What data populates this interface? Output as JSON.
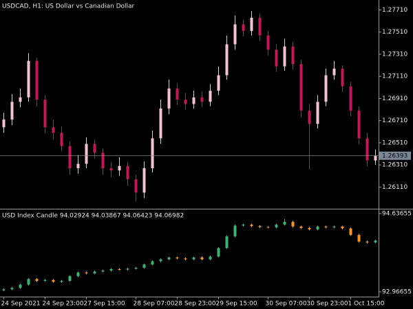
{
  "chart_data": [
    {
      "type": "candlestick",
      "title": "USDCAD, H1:  US Dollar vs Canadian Dollar",
      "open": [
        1.2665,
        1.2672,
        1.2688,
        1.2692,
        1.2725,
        1.269,
        1.2665,
        1.266,
        1.2648,
        1.2628,
        1.2632,
        1.265,
        1.2642,
        1.2628,
        1.2626,
        1.263,
        1.2618,
        1.2606,
        1.2628,
        1.2655,
        1.2682,
        1.27,
        1.269,
        1.2686,
        1.2692,
        1.2688,
        1.2698,
        1.2712,
        1.274,
        1.2758,
        1.2752,
        1.2764,
        1.2748,
        1.2735,
        1.272,
        1.2738,
        1.2722,
        1.268,
        1.2668,
        1.2688,
        1.2712,
        1.2718,
        1.2702,
        1.268,
        1.2655,
        1.2635
      ],
      "high": [
        1.2678,
        1.2695,
        1.27,
        1.2732,
        1.2728,
        1.2694,
        1.2672,
        1.2666,
        1.2652,
        1.264,
        1.2656,
        1.2654,
        1.2646,
        1.2634,
        1.2638,
        1.2634,
        1.2622,
        1.2634,
        1.2662,
        1.269,
        1.2708,
        1.2705,
        1.2696,
        1.2698,
        1.2697,
        1.2704,
        1.272,
        1.2748,
        1.2766,
        1.2762,
        1.277,
        1.2768,
        1.2752,
        1.274,
        1.2745,
        1.2742,
        1.2726,
        1.2686,
        1.2694,
        1.2718,
        1.2725,
        1.2721,
        1.2706,
        1.2684,
        1.266,
        1.2645
      ],
      "low": [
        1.266,
        1.2667,
        1.2683,
        1.2688,
        1.2684,
        1.266,
        1.2654,
        1.2643,
        1.2622,
        1.2623,
        1.2628,
        1.2637,
        1.2622,
        1.262,
        1.2621,
        1.2612,
        1.2598,
        1.2601,
        1.2624,
        1.265,
        1.2677,
        1.2685,
        1.2681,
        1.2682,
        1.2683,
        1.2684,
        1.2694,
        1.2708,
        1.2735,
        1.2747,
        1.2748,
        1.2743,
        1.273,
        1.2715,
        1.2716,
        1.2717,
        1.2674,
        1.2627,
        1.2664,
        1.2684,
        1.2708,
        1.2697,
        1.2675,
        1.265,
        1.263,
        1.2631
      ],
      "close": [
        1.2672,
        1.2688,
        1.2692,
        1.2725,
        1.269,
        1.2665,
        1.266,
        1.2648,
        1.2628,
        1.2632,
        1.265,
        1.2642,
        1.2628,
        1.2626,
        1.263,
        1.2618,
        1.2606,
        1.2628,
        1.2655,
        1.2682,
        1.27,
        1.269,
        1.2686,
        1.2692,
        1.2688,
        1.2698,
        1.2712,
        1.274,
        1.2758,
        1.2752,
        1.2764,
        1.2748,
        1.2735,
        1.272,
        1.2738,
        1.2722,
        1.268,
        1.2668,
        1.2688,
        1.2712,
        1.2718,
        1.2702,
        1.268,
        1.2655,
        1.2635,
        1.26393
      ],
      "up_color": "#f2c4d2",
      "down_color": "#c2185b",
      "current_price": 1.26393,
      "ylim": [
        1.2592,
        1.278
      ],
      "yticks": [
        {
          "value": 1.2611,
          "label": "1.26110"
        },
        {
          "value": 1.2631,
          "label": "1.26310"
        },
        {
          "value": 1.2651,
          "label": "1.26510"
        },
        {
          "value": 1.2671,
          "label": "1.26710"
        },
        {
          "value": 1.2691,
          "label": "1.26910"
        },
        {
          "value": 1.2711,
          "label": "1.27110"
        },
        {
          "value": 1.2731,
          "label": "1.27310"
        },
        {
          "value": 1.2751,
          "label": "1.27510"
        },
        {
          "value": 1.2771,
          "label": "1.27710"
        }
      ]
    },
    {
      "type": "candlestick",
      "title": "USD Index Candle 94.02924 94.03867 94.06423 94.06982",
      "categories": [
        "24 Sep 2021",
        null,
        null,
        null,
        null,
        "24 Sep 23:00",
        null,
        null,
        null,
        null,
        "27 Sep 15:00",
        null,
        null,
        null,
        null,
        null,
        "28 Sep 07:00",
        null,
        null,
        null,
        null,
        "28 Sep 23:00",
        null,
        null,
        null,
        null,
        "29 Sep 15:00",
        null,
        null,
        null,
        null,
        null,
        "30 Sep 07:00",
        null,
        null,
        null,
        null,
        "30 Sep 23:00",
        null,
        null,
        null,
        null,
        "1 Oct 15:00",
        null,
        null,
        null
      ],
      "open": [
        93.0,
        93.02,
        93.05,
        93.12,
        93.24,
        93.2,
        93.22,
        93.18,
        93.2,
        93.3,
        93.38,
        93.36,
        93.4,
        93.42,
        93.45,
        93.44,
        93.46,
        93.48,
        93.55,
        93.62,
        93.66,
        93.7,
        93.68,
        93.66,
        93.7,
        93.66,
        93.72,
        93.9,
        94.15,
        94.38,
        94.4,
        94.37,
        94.35,
        94.34,
        94.4,
        94.46,
        94.36,
        94.33,
        94.3,
        94.36,
        94.34,
        94.36,
        94.32,
        94.18,
        94.04,
        94.02
      ],
      "high": [
        93.04,
        93.07,
        93.14,
        93.26,
        93.26,
        93.24,
        93.24,
        93.22,
        93.32,
        93.4,
        93.4,
        93.42,
        93.44,
        93.47,
        93.47,
        93.48,
        93.5,
        93.57,
        93.64,
        93.68,
        93.72,
        93.72,
        93.7,
        93.72,
        93.72,
        93.74,
        93.92,
        94.17,
        94.4,
        94.42,
        94.42,
        94.39,
        94.37,
        94.42,
        94.52,
        94.48,
        94.38,
        94.35,
        94.38,
        94.38,
        94.38,
        94.38,
        94.34,
        94.2,
        94.06,
        94.08
      ],
      "low": [
        92.98,
        93.0,
        93.03,
        93.1,
        93.18,
        93.18,
        93.16,
        93.16,
        93.18,
        93.28,
        93.34,
        93.34,
        93.38,
        93.4,
        93.42,
        93.42,
        93.44,
        93.46,
        93.53,
        93.6,
        93.64,
        93.66,
        93.64,
        93.64,
        93.64,
        93.64,
        93.7,
        93.88,
        94.13,
        94.36,
        94.35,
        94.33,
        94.32,
        94.32,
        94.38,
        94.34,
        94.31,
        94.28,
        94.28,
        94.32,
        94.32,
        94.3,
        94.16,
        94.02,
        94.0,
        94.0
      ],
      "close": [
        93.02,
        93.05,
        93.12,
        93.24,
        93.2,
        93.22,
        93.18,
        93.2,
        93.3,
        93.38,
        93.36,
        93.4,
        93.42,
        93.45,
        93.44,
        93.46,
        93.48,
        93.55,
        93.62,
        93.66,
        93.7,
        93.68,
        93.66,
        93.7,
        93.66,
        93.72,
        93.9,
        94.15,
        94.38,
        94.4,
        94.37,
        94.35,
        94.34,
        94.4,
        94.46,
        94.36,
        94.33,
        94.3,
        94.36,
        94.34,
        94.36,
        94.32,
        94.18,
        94.04,
        94.02,
        94.06
      ],
      "up_color": "#3cb371",
      "down_color": "#f7931e",
      "ylim": [
        92.864,
        94.7245
      ],
      "yticks": [
        92.96655,
        94.63655
      ]
    }
  ]
}
